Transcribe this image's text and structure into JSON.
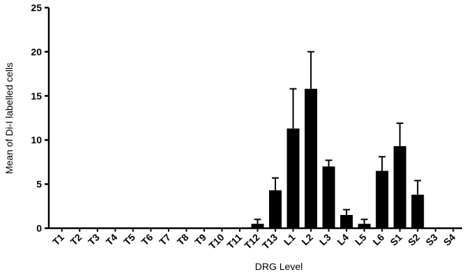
{
  "chart_data": {
    "type": "bar",
    "x_label": "DRG Level",
    "y_label": "Mean of Di-I labelled cells",
    "categories": [
      "T1",
      "T2",
      "T3",
      "T4",
      "T5",
      "T6",
      "T7",
      "T8",
      "T9",
      "T10",
      "T11",
      "T12",
      "T13",
      "L1",
      "L2",
      "L3",
      "L4",
      "L5",
      "L6",
      "S1",
      "S2",
      "S3",
      "S4"
    ],
    "values": [
      0,
      0,
      0,
      0,
      0,
      0,
      0,
      0,
      0,
      0,
      0,
      0.5,
      4.3,
      11.3,
      15.8,
      7.0,
      1.5,
      0.5,
      6.5,
      9.3,
      3.8,
      0,
      0
    ],
    "errors": [
      0,
      0,
      0,
      0,
      0,
      0,
      0,
      0,
      0,
      0,
      0,
      0.5,
      1.4,
      4.5,
      4.2,
      0.7,
      0.6,
      0.5,
      1.6,
      2.6,
      1.6,
      0,
      0
    ],
    "color": "#000000",
    "ylim": [
      0,
      25
    ],
    "yticks": [
      0,
      5,
      10,
      15,
      20,
      25
    ]
  }
}
